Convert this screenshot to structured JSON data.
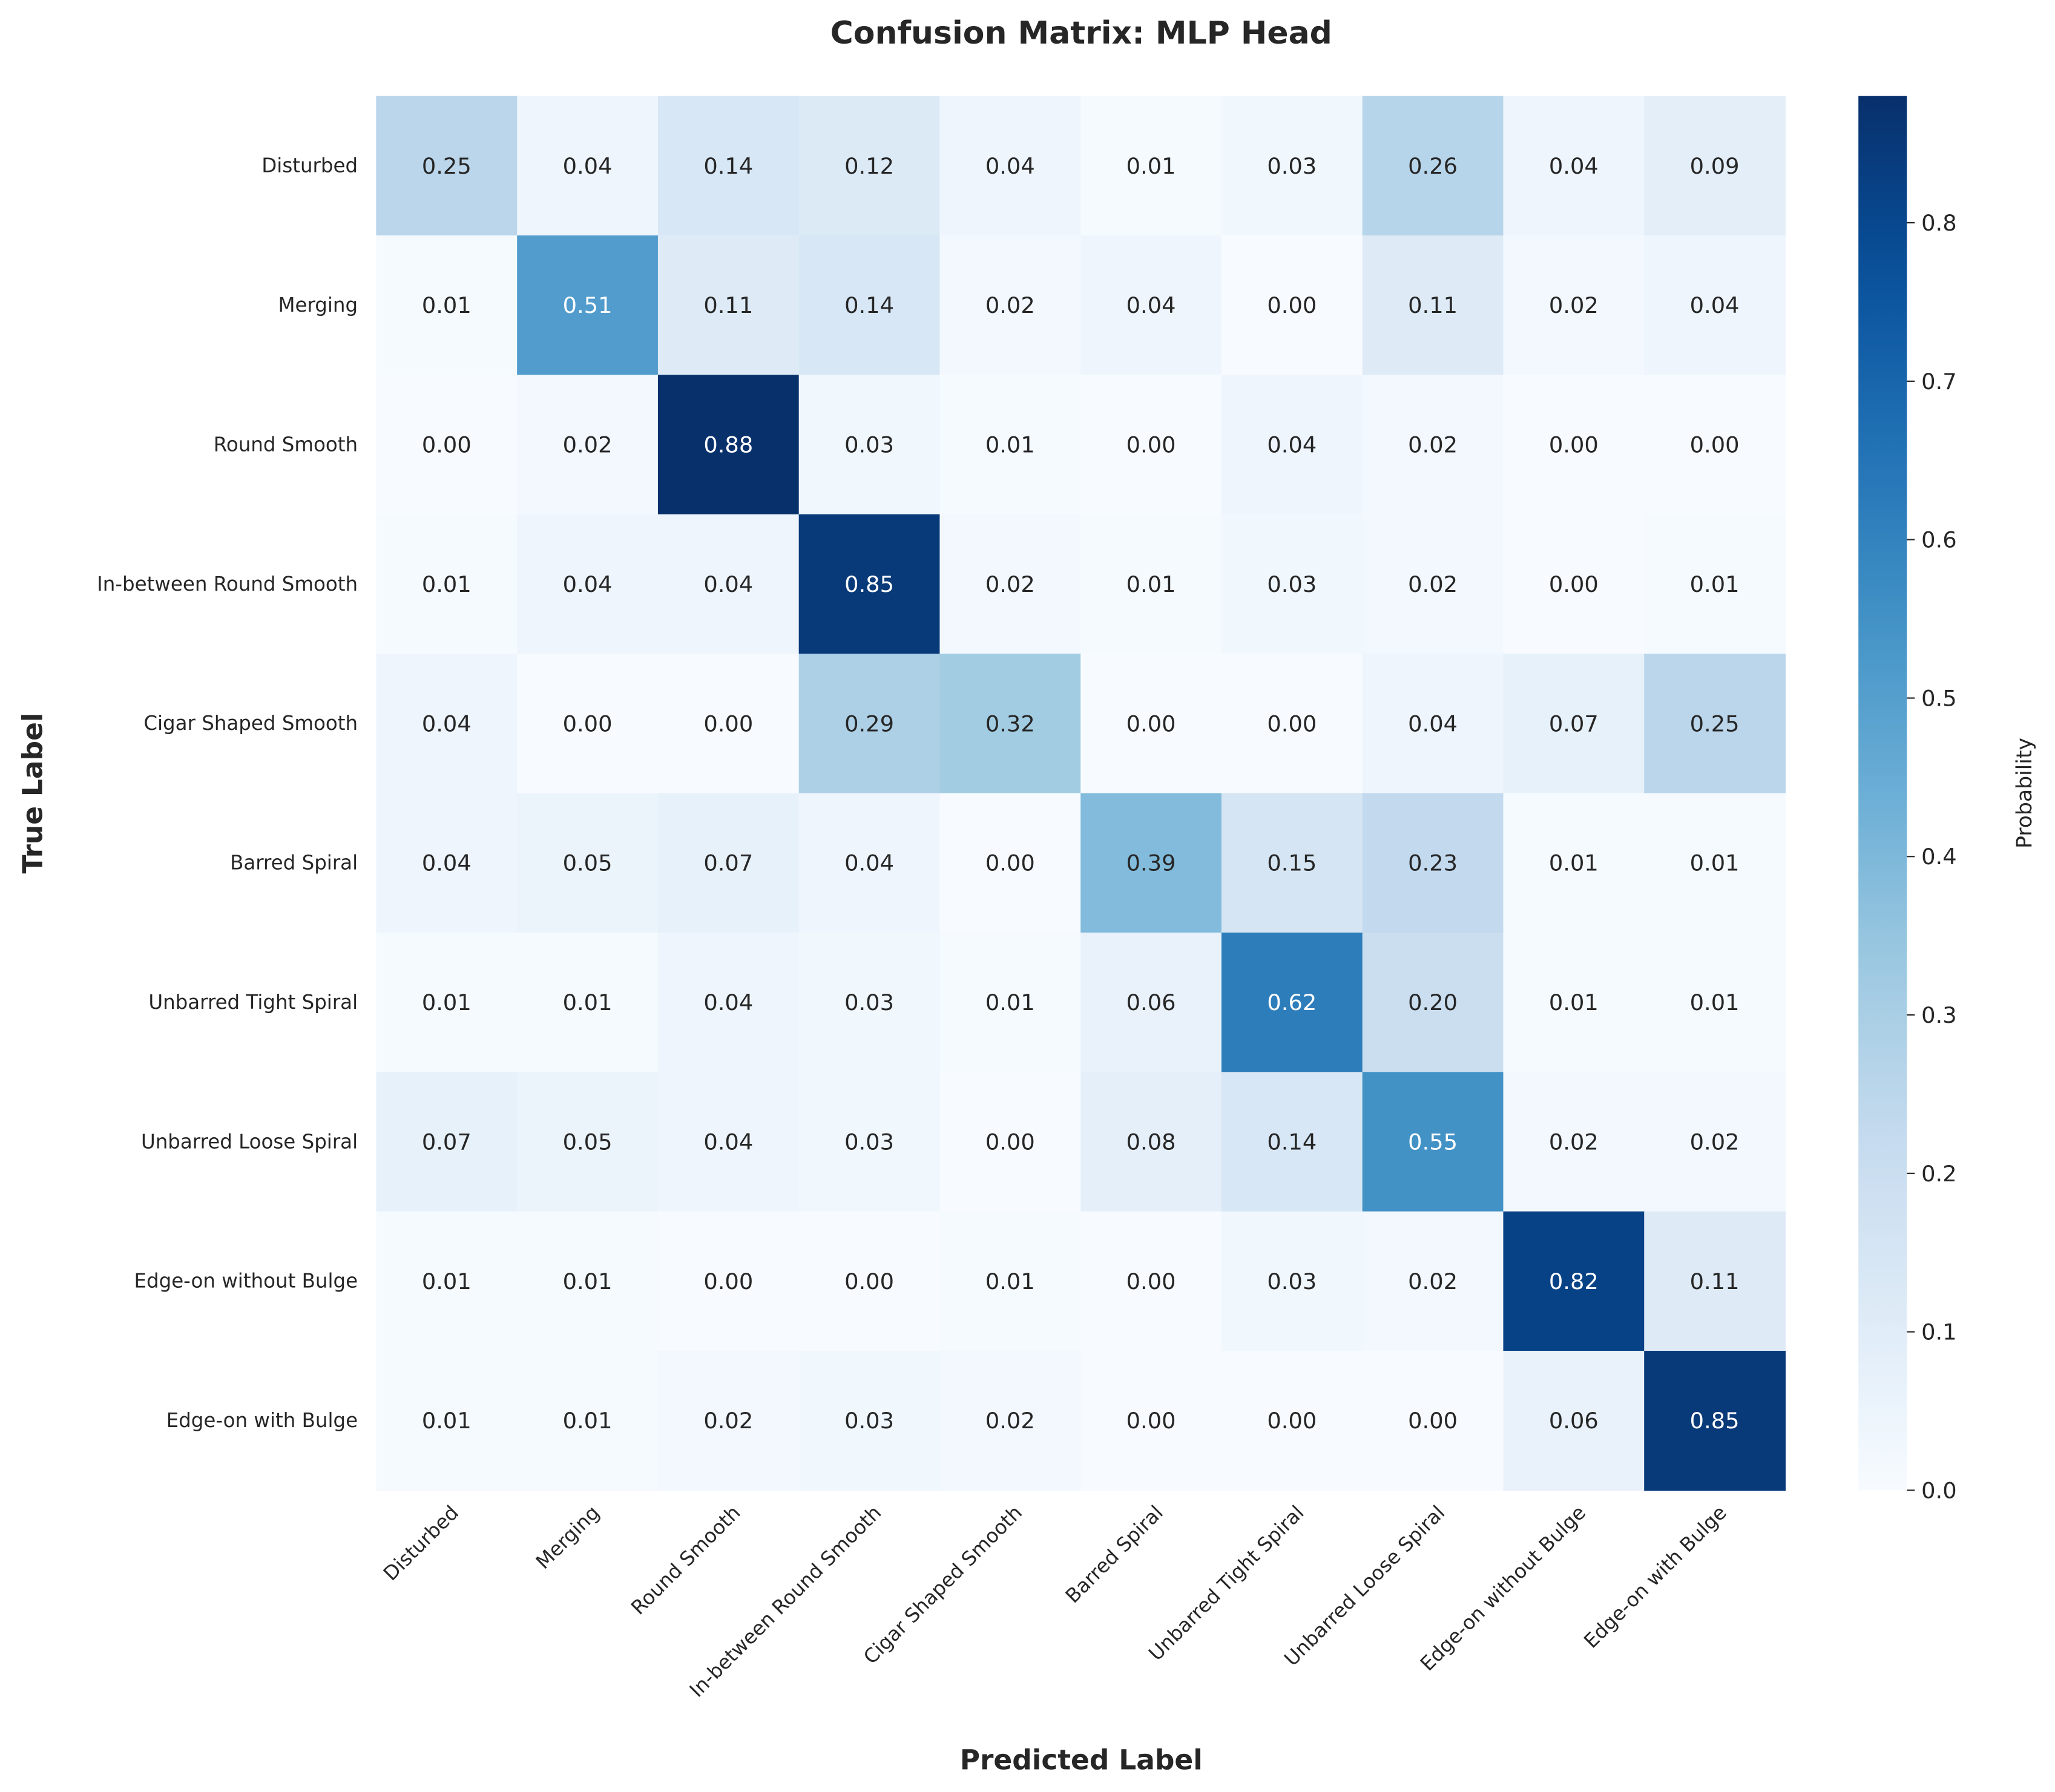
{
  "chart_data": {
    "type": "heatmap",
    "title": "Confusion Matrix: MLP Head",
    "xlabel": "Predicted Label",
    "ylabel": "True Label",
    "colorbar_label": "Probability",
    "colormap": "Blues",
    "color_range": [
      0,
      0.88
    ],
    "colorbar_ticks": [
      "0.0",
      "0.1",
      "0.2",
      "0.3",
      "0.4",
      "0.5",
      "0.6",
      "0.7",
      "0.8"
    ],
    "x_categories": [
      "Disturbed",
      "Merging",
      "Round Smooth",
      "In-between Round Smooth",
      "Cigar Shaped Smooth",
      "Barred Spiral",
      "Unbarred Tight Spiral",
      "Unbarred Loose Spiral",
      "Edge-on without Bulge",
      "Edge-on with Bulge"
    ],
    "y_categories": [
      "Disturbed",
      "Merging",
      "Round Smooth",
      "In-between Round Smooth",
      "Cigar Shaped Smooth",
      "Barred Spiral",
      "Unbarred Tight Spiral",
      "Unbarred Loose Spiral",
      "Edge-on without Bulge",
      "Edge-on with Bulge"
    ],
    "values": [
      [
        0.25,
        0.04,
        0.14,
        0.12,
        0.04,
        0.01,
        0.03,
        0.26,
        0.04,
        0.09
      ],
      [
        0.01,
        0.51,
        0.11,
        0.14,
        0.02,
        0.04,
        0.0,
        0.11,
        0.02,
        0.04
      ],
      [
        0.0,
        0.02,
        0.88,
        0.03,
        0.01,
        0.0,
        0.04,
        0.02,
        0.0,
        0.0
      ],
      [
        0.01,
        0.04,
        0.04,
        0.85,
        0.02,
        0.01,
        0.03,
        0.02,
        0.0,
        0.01
      ],
      [
        0.04,
        0.0,
        0.0,
        0.29,
        0.32,
        0.0,
        0.0,
        0.04,
        0.07,
        0.25
      ],
      [
        0.04,
        0.05,
        0.07,
        0.04,
        0.0,
        0.39,
        0.15,
        0.23,
        0.01,
        0.01
      ],
      [
        0.01,
        0.01,
        0.04,
        0.03,
        0.01,
        0.06,
        0.62,
        0.2,
        0.01,
        0.01
      ],
      [
        0.07,
        0.05,
        0.04,
        0.03,
        0.0,
        0.08,
        0.14,
        0.55,
        0.02,
        0.02
      ],
      [
        0.01,
        0.01,
        0.0,
        0.0,
        0.01,
        0.0,
        0.03,
        0.02,
        0.82,
        0.11
      ],
      [
        0.01,
        0.01,
        0.02,
        0.03,
        0.02,
        0.0,
        0.0,
        0.0,
        0.06,
        0.85
      ]
    ]
  }
}
